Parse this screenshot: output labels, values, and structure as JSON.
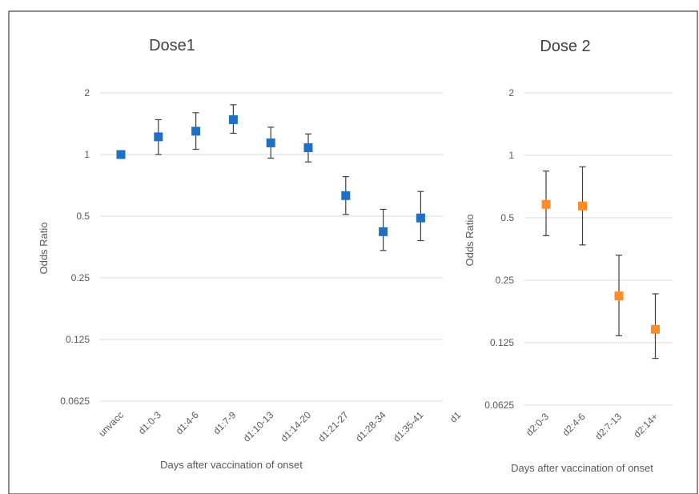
{
  "chart_data": [
    {
      "type": "scatter",
      "title": "Dose1",
      "xlabel": "Days after vaccination of onset",
      "ylabel": "Odds Ratio",
      "yscale": "log2",
      "ylim": [
        0.0625,
        2
      ],
      "yticks": [
        "2",
        "1",
        "0.5",
        "0.25",
        "0.125",
        "0.0625"
      ],
      "yticks_values": [
        2,
        1,
        0.5,
        0.25,
        0.125,
        0.0625
      ],
      "grid": true,
      "legend": "none",
      "marker_color": "#1f6fc5",
      "categories": [
        "unvacc",
        "d1:0-3",
        "d1:4-6",
        "d1:7-9",
        "d1:10-13",
        "d1:14-20",
        "d1:21-27",
        "d1:28-34",
        "d1:35-41",
        "d1"
      ],
      "values": [
        1.0,
        1.22,
        1.3,
        1.48,
        1.14,
        1.08,
        0.63,
        0.42,
        0.49,
        null
      ],
      "ci_low": [
        null,
        1.0,
        1.06,
        1.27,
        0.96,
        0.92,
        0.51,
        0.34,
        0.38,
        null
      ],
      "ci_high": [
        null,
        1.48,
        1.6,
        1.75,
        1.36,
        1.26,
        0.78,
        0.54,
        0.66,
        null
      ]
    },
    {
      "type": "scatter",
      "title": "Dose 2",
      "xlabel": "Days after vaccination of onset",
      "ylabel": "Odds Ratio",
      "yscale": "log2",
      "ylim": [
        0.0625,
        2
      ],
      "yticks": [
        "2",
        "1",
        "0.5",
        "0.25",
        "0.125",
        "0.0625"
      ],
      "yticks_values": [
        2,
        1,
        0.5,
        0.25,
        0.125,
        0.0625
      ],
      "grid": true,
      "legend": "none",
      "marker_color": "#ff8c2a",
      "categories": [
        "d2:0-3",
        "d2:4-6",
        "d2:7-13",
        "d2:14+"
      ],
      "values": [
        0.58,
        0.57,
        0.21,
        0.145
      ],
      "ci_low": [
        0.41,
        0.37,
        0.135,
        0.105
      ],
      "ci_high": [
        0.84,
        0.88,
        0.33,
        0.215
      ]
    }
  ]
}
